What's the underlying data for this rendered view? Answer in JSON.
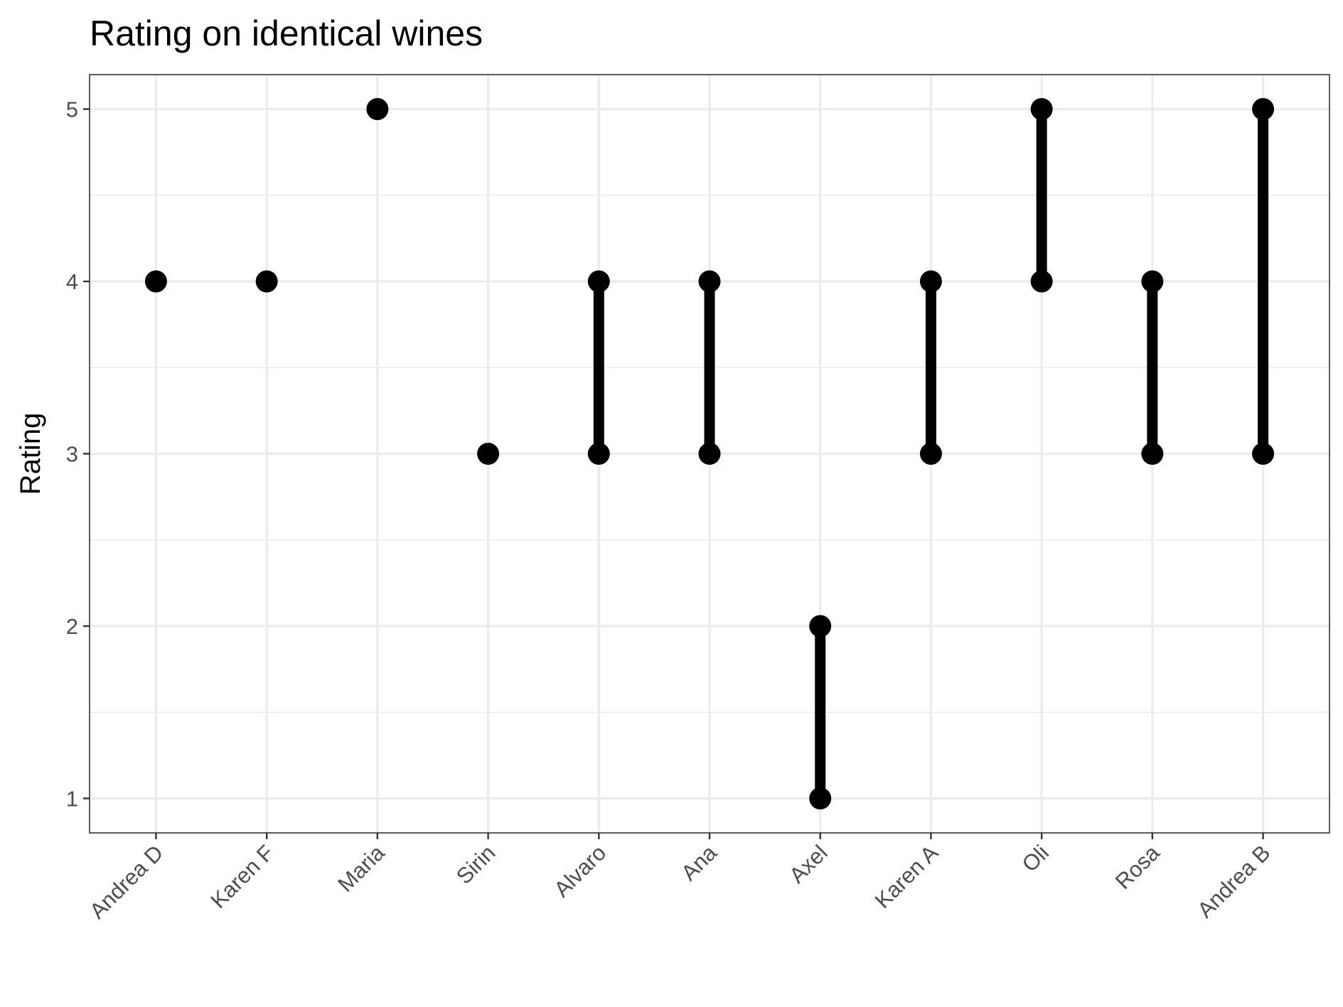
{
  "chart_data": {
    "type": "dumbbell",
    "title": "Rating on identical wines",
    "xlabel": "",
    "ylabel": "Rating",
    "ylim": [
      0.8,
      5.2
    ],
    "yticks": [
      1,
      2,
      3,
      4,
      5
    ],
    "grid": true,
    "legend": "none",
    "categories": [
      "Andrea D",
      "Karen F",
      "Maria",
      "Sirin",
      "Alvaro",
      "Ana",
      "Axel",
      "Karen A",
      "Oli",
      "Rosa",
      "Andrea B"
    ],
    "ratings": [
      {
        "taster": "Andrea D",
        "values": [
          4
        ]
      },
      {
        "taster": "Karen F",
        "values": [
          4
        ]
      },
      {
        "taster": "Maria",
        "values": [
          5
        ]
      },
      {
        "taster": "Sirin",
        "values": [
          3
        ]
      },
      {
        "taster": "Alvaro",
        "values": [
          3,
          4
        ]
      },
      {
        "taster": "Ana",
        "values": [
          3,
          4
        ]
      },
      {
        "taster": "Axel",
        "values": [
          1,
          2
        ]
      },
      {
        "taster": "Karen A",
        "values": [
          3,
          4
        ]
      },
      {
        "taster": "Oli",
        "values": [
          4,
          5
        ]
      },
      {
        "taster": "Rosa",
        "values": [
          3,
          4
        ]
      },
      {
        "taster": "Andrea B",
        "values": [
          3,
          5
        ]
      }
    ],
    "colors": {
      "marks": "#000000",
      "grid": "#ebebeb",
      "axis_text": "#4d4d4d",
      "border": "#333333"
    }
  }
}
